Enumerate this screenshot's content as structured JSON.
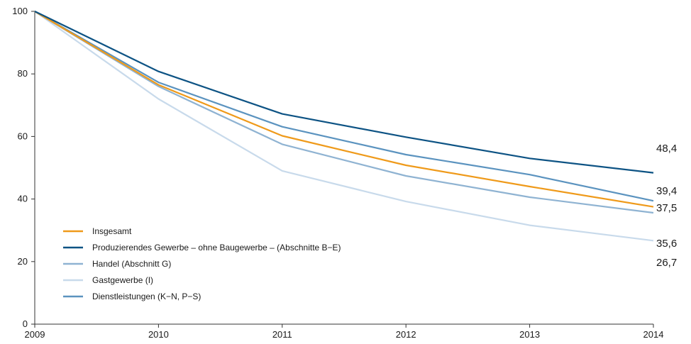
{
  "chart_data": {
    "type": "line",
    "x": [
      "2009",
      "2010",
      "2011",
      "2012",
      "2013",
      "2014"
    ],
    "ylim": [
      0,
      100
    ],
    "yticks": [
      0,
      20,
      40,
      60,
      80,
      100
    ],
    "grid": false,
    "legend_placement": "bottom-left",
    "series": [
      {
        "name": "Insgesamt",
        "color": "#ef9a1a",
        "values": [
          100,
          76.5,
          60.2,
          50.8,
          44.0,
          37.5
        ]
      },
      {
        "name": "Produzierendes Gewerbe – ohne Baugewerbe – (Abschnitte B−E)",
        "color": "#0d5384",
        "values": [
          100,
          80.8,
          67.2,
          59.8,
          53.0,
          48.4
        ]
      },
      {
        "name": "Handel (Abschnitt G)",
        "color": "#8fb3d2",
        "values": [
          100,
          76.0,
          57.5,
          47.4,
          40.6,
          35.6
        ]
      },
      {
        "name": "Gastgewerbe (I)",
        "color": "#c8daeb",
        "values": [
          100,
          72.0,
          49.0,
          39.2,
          31.6,
          26.7
        ]
      },
      {
        "name": "Dienstleistungen (K−N, P−S)",
        "color": "#5b93bf",
        "values": [
          100,
          77.3,
          63.1,
          54.2,
          47.8,
          39.4
        ]
      }
    ],
    "end_labels": [
      "48,4",
      "39,4",
      "37,5",
      "35,6",
      "26,7"
    ]
  }
}
